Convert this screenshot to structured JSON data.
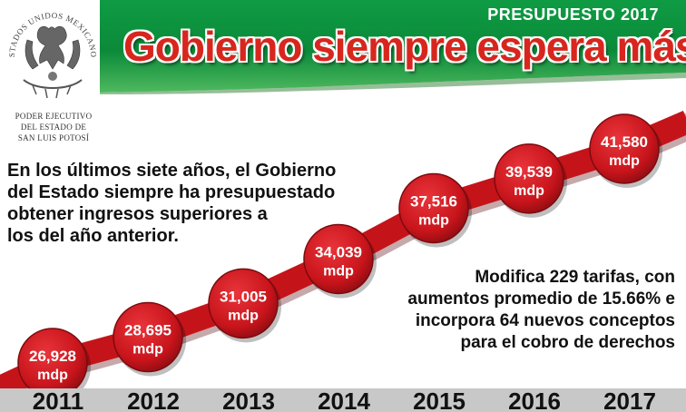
{
  "header": {
    "kicker": "PRESUPUESTO 2017",
    "title": "Gobierno siempre espera más"
  },
  "seal": {
    "arc_text": "ESTADOS UNIDOS MEXICANOS",
    "lines": [
      "PODER EJECUTIVO",
      "DEL ESTADO DE",
      "SAN LUIS POTOSÍ"
    ]
  },
  "intro_lines": [
    "En los últimos siete años, el Gobierno",
    "del Estado siempre ha presupuestado",
    "obtener ingresos superiores a",
    "los del año anterior."
  ],
  "note_lines": [
    "Modifica 229 tarifas, con",
    "aumentos promedio de 15.66% e",
    "incorpora 64 nuevos conceptos",
    "para el cobro de derechos"
  ],
  "colors": {
    "header_green": "#0b8a3a",
    "header_green_light": "#48b35a",
    "title_red": "#d7261e",
    "bubble_red": "#c8141b",
    "ribbon_red": "#c4141a",
    "year_band": "#c8c8c8"
  },
  "chart_data": {
    "type": "line",
    "title": "",
    "xlabel": "",
    "ylabel": "",
    "categories": [
      "2011",
      "2012",
      "2013",
      "2014",
      "2015",
      "2016",
      "2017"
    ],
    "series": [
      {
        "values": [
          26928,
          28695,
          31005,
          34039,
          37516,
          39539,
          41580
        ],
        "labels": [
          "26,928",
          "28,695",
          "31,005",
          "34,039",
          "37,516",
          "39,539",
          "41,580"
        ]
      }
    ],
    "unit_label": "mdp",
    "ylim": [
      24000,
      44000
    ],
    "grid": false,
    "legend": "none"
  }
}
